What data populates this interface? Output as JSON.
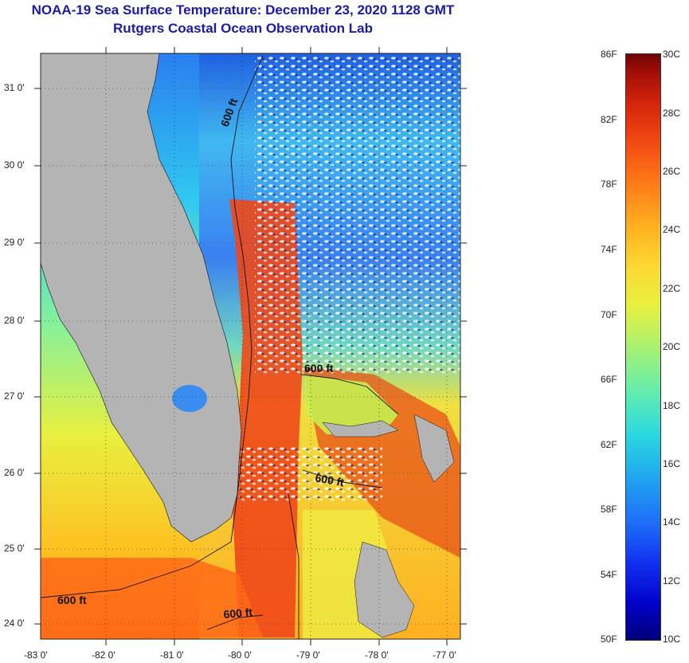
{
  "title": {
    "line1": "NOAA-19 Sea Surface Temperature:  December 23, 2020 1128 GMT",
    "line2": "Rutgers Coastal Ocean Observation Lab"
  },
  "map": {
    "lat_labels": [
      "31 0'",
      "30 0'",
      "29 0'",
      "28 0'",
      "27 0'",
      "26 0'",
      "25 0'",
      "24 0'"
    ],
    "lon_labels": [
      "-83 0'",
      "-82 0'",
      "-81 0'",
      "-80 0'",
      "-79 0'",
      "-78 0'",
      "-77 0'"
    ],
    "contour_labels": [
      "600 ft",
      "600 ft",
      "600 ft",
      "600 ft",
      "600 ft"
    ],
    "colors": {
      "land": "#b4b4b4",
      "grid": "#222222"
    }
  },
  "colorbar": {
    "fahrenheit_labels": [
      "86F",
      "82F",
      "78F",
      "74F",
      "70F",
      "66F",
      "62F",
      "58F",
      "54F",
      "50F"
    ],
    "celsius_labels": [
      "30C",
      "28C",
      "26C",
      "24C",
      "22C",
      "20C",
      "18C",
      "16C",
      "14C",
      "12C",
      "10C"
    ]
  }
}
